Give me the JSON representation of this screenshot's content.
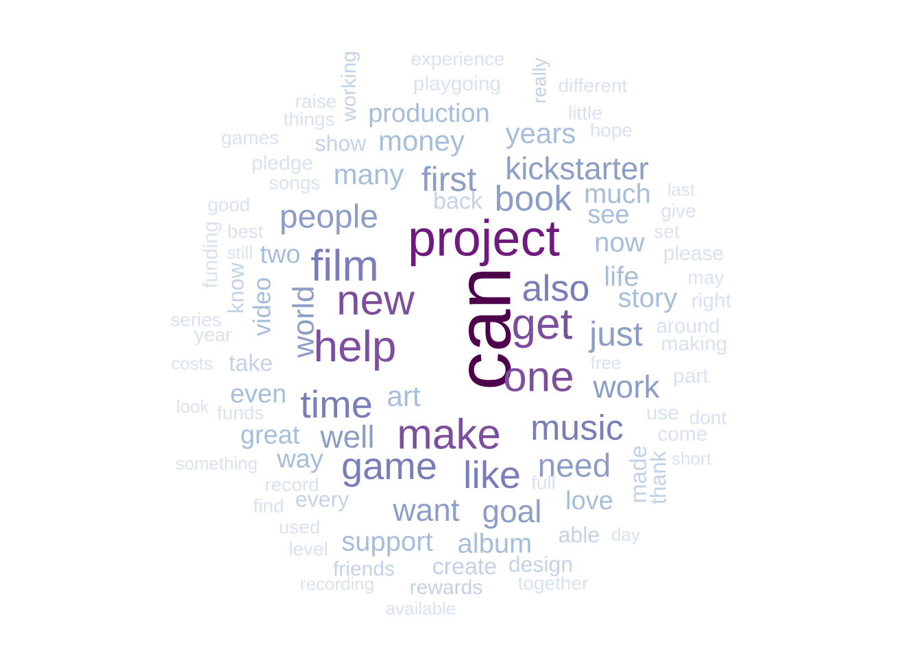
{
  "palette": {
    "t0": "#4d004b",
    "t1": "#6e1a7e",
    "t2": "#7d4d9e",
    "t3": "#7a7eb8",
    "t4": "#8c9dc8",
    "t5": "#a6bddb",
    "t6": "#c4d2e6",
    "t7": "#d9e3ef"
  },
  "words": [
    {
      "text": "can",
      "tier": "t0"
    },
    {
      "text": "project",
      "tier": "t1"
    },
    {
      "text": "new",
      "tier": "t2"
    },
    {
      "text": "help",
      "tier": "t2"
    },
    {
      "text": "make",
      "tier": "t2"
    },
    {
      "text": "get",
      "tier": "t2"
    },
    {
      "text": "one",
      "tier": "t2"
    },
    {
      "text": "film",
      "tier": "t3"
    },
    {
      "text": "also",
      "tier": "t3"
    },
    {
      "text": "game",
      "tier": "t3"
    },
    {
      "text": "music",
      "tier": "t3"
    },
    {
      "text": "time",
      "tier": "t3"
    },
    {
      "text": "like",
      "tier": "t3"
    },
    {
      "text": "book",
      "tier": "t4"
    },
    {
      "text": "kickstarter",
      "tier": "t4"
    },
    {
      "text": "first",
      "tier": "t4"
    },
    {
      "text": "people",
      "tier": "t4"
    },
    {
      "text": "need",
      "tier": "t4"
    },
    {
      "text": "just",
      "tier": "t4"
    },
    {
      "text": "work",
      "tier": "t4"
    },
    {
      "text": "well",
      "tier": "t4"
    },
    {
      "text": "want",
      "tier": "t4"
    },
    {
      "text": "goal",
      "tier": "t4"
    },
    {
      "text": "world",
      "tier": "t4"
    },
    {
      "text": "many",
      "tier": "t5"
    },
    {
      "text": "money",
      "tier": "t5"
    },
    {
      "text": "years",
      "tier": "t5"
    },
    {
      "text": "production",
      "tier": "t5"
    },
    {
      "text": "much",
      "tier": "t5"
    },
    {
      "text": "see",
      "tier": "t5"
    },
    {
      "text": "now",
      "tier": "t5"
    },
    {
      "text": "life",
      "tier": "t5"
    },
    {
      "text": "story",
      "tier": "t5"
    },
    {
      "text": "two",
      "tier": "t5"
    },
    {
      "text": "art",
      "tier": "t5"
    },
    {
      "text": "even",
      "tier": "t5"
    },
    {
      "text": "great",
      "tier": "t5"
    },
    {
      "text": "way",
      "tier": "t5"
    },
    {
      "text": "support",
      "tier": "t5"
    },
    {
      "text": "album",
      "tier": "t5"
    },
    {
      "text": "love",
      "tier": "t5"
    },
    {
      "text": "video",
      "tier": "t5"
    },
    {
      "text": "back",
      "tier": "t6"
    },
    {
      "text": "take",
      "tier": "t6"
    },
    {
      "text": "every",
      "tier": "t6"
    },
    {
      "text": "create",
      "tier": "t6"
    },
    {
      "text": "design",
      "tier": "t6"
    },
    {
      "text": "friends",
      "tier": "t6"
    },
    {
      "text": "rewards",
      "tier": "t6"
    },
    {
      "text": "able",
      "tier": "t6"
    },
    {
      "text": "made",
      "tier": "t6"
    },
    {
      "text": "thank",
      "tier": "t6"
    },
    {
      "text": "know",
      "tier": "t6"
    },
    {
      "text": "show",
      "tier": "t6"
    },
    {
      "text": "working",
      "tier": "t6"
    },
    {
      "text": "really",
      "tier": "t6"
    },
    {
      "text": "playgoing",
      "tier": "t7"
    },
    {
      "text": "experience",
      "tier": "t7"
    },
    {
      "text": "different",
      "tier": "t7"
    },
    {
      "text": "raise",
      "tier": "t7"
    },
    {
      "text": "things",
      "tier": "t7"
    },
    {
      "text": "little",
      "tier": "t7"
    },
    {
      "text": "hope",
      "tier": "t7"
    },
    {
      "text": "games",
      "tier": "t7"
    },
    {
      "text": "pledge",
      "tier": "t7"
    },
    {
      "text": "songs",
      "tier": "t7"
    },
    {
      "text": "good",
      "tier": "t7"
    },
    {
      "text": "best",
      "tier": "t7"
    },
    {
      "text": "still",
      "tier": "t7"
    },
    {
      "text": "funding",
      "tier": "t7"
    },
    {
      "text": "series",
      "tier": "t7"
    },
    {
      "text": "year",
      "tier": "t7"
    },
    {
      "text": "costs",
      "tier": "t7"
    },
    {
      "text": "look",
      "tier": "t7"
    },
    {
      "text": "funds",
      "tier": "t7"
    },
    {
      "text": "something",
      "tier": "t7"
    },
    {
      "text": "record",
      "tier": "t7"
    },
    {
      "text": "find",
      "tier": "t7"
    },
    {
      "text": "used",
      "tier": "t7"
    },
    {
      "text": "level",
      "tier": "t7"
    },
    {
      "text": "recording",
      "tier": "t7"
    },
    {
      "text": "available",
      "tier": "t7"
    },
    {
      "text": "together",
      "tier": "t7"
    },
    {
      "text": "day",
      "tier": "t7"
    },
    {
      "text": "full",
      "tier": "t7"
    },
    {
      "text": "short",
      "tier": "t7"
    },
    {
      "text": "come",
      "tier": "t7"
    },
    {
      "text": "dont",
      "tier": "t7"
    },
    {
      "text": "use",
      "tier": "t7"
    },
    {
      "text": "part",
      "tier": "t7"
    },
    {
      "text": "free",
      "tier": "t7"
    },
    {
      "text": "making",
      "tier": "t7"
    },
    {
      "text": "around",
      "tier": "t7"
    },
    {
      "text": "right",
      "tier": "t7"
    },
    {
      "text": "may",
      "tier": "t7"
    },
    {
      "text": "please",
      "tier": "t7"
    },
    {
      "text": "set",
      "tier": "t7"
    },
    {
      "text": "give",
      "tier": "t7"
    },
    {
      "text": "last",
      "tier": "t7"
    }
  ]
}
